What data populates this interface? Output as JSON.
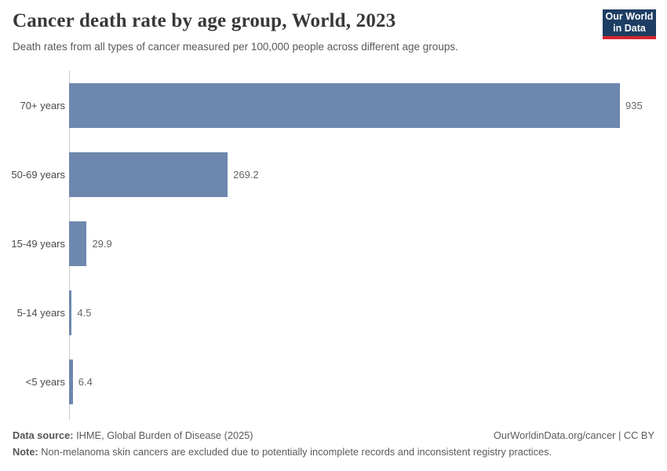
{
  "header": {
    "title": "Cancer death rate by age group, World, 2023",
    "subtitle": "Death rates from all types of cancer measured per 100,000 people across different age groups.",
    "logo": {
      "line1": "Our World",
      "line2": "in Data"
    }
  },
  "chart_data": {
    "type": "bar",
    "orientation": "horizontal",
    "title": "Cancer death rate by age group, World, 2023",
    "categories": [
      "70+ years",
      "50-69 years",
      "15-49 years",
      "5-14 years",
      "<5 years"
    ],
    "values": [
      935,
      269.2,
      29.9,
      4.5,
      6.4
    ],
    "value_labels": [
      "935",
      "269.2",
      "29.9",
      "4.5",
      "6.4"
    ],
    "xlabel": "",
    "ylabel": "",
    "xlim": [
      0,
      935
    ],
    "grid": false,
    "legend": false,
    "unit": "deaths per 100,000 people"
  },
  "footer": {
    "datasource_label": "Data source:",
    "datasource_text": " IHME, Global Burden of Disease (2025)",
    "note_label": "Note:",
    "note_text": " Non-melanoma skin cancers are excluded due to potentially incomplete records and inconsistent registry practices.",
    "link": "OurWorldinData.org/cancer | CC BY"
  },
  "colors": {
    "bar": "#6d87ae",
    "axis_line": "#cccccc",
    "logo_bg": "#1d3d63",
    "logo_stripe": "#d8252e",
    "title_text": "#383838",
    "body_text": "#5b5b5b"
  }
}
